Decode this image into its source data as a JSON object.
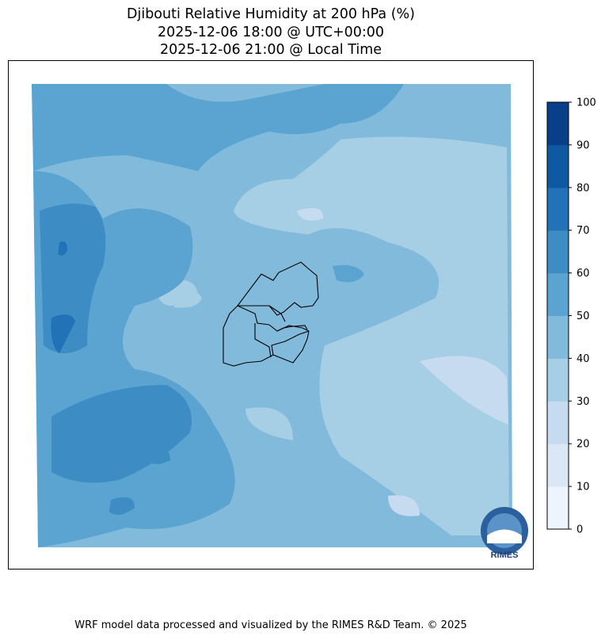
{
  "title": {
    "line1": "Djibouti Relative Humidity at 200 hPa (%)",
    "line2": "2025-12-06 18:00 @ UTC+00:00",
    "line3": "2025-12-06 21:00 @ Local Time"
  },
  "chart_data": {
    "type": "heatmap",
    "variable": "Relative Humidity at 200 hPa (%)",
    "colorbar": {
      "levels": [
        0,
        10,
        20,
        30,
        40,
        50,
        60,
        70,
        80,
        90,
        100
      ],
      "tick_labels": [
        "0",
        "10",
        "20",
        "30",
        "40",
        "50",
        "60",
        "70",
        "80",
        "90",
        "100"
      ],
      "colors": [
        "#edf4fc",
        "#dae8f6",
        "#c6dbef",
        "#a6cee4",
        "#82badb",
        "#5ba3d0",
        "#3d8dc4",
        "#2172b6",
        "#0f59a3",
        "#083f88"
      ],
      "orientation": "vertical",
      "placement": "right"
    },
    "regions": {
      "west": "50-70",
      "center": "40-50",
      "east": "30-40",
      "southeast_patch": "20-30"
    }
  },
  "logo": {
    "text": "RIMES"
  },
  "footer": "WRF model data processed and visualized by the RIMES R&D Team. © 2025"
}
